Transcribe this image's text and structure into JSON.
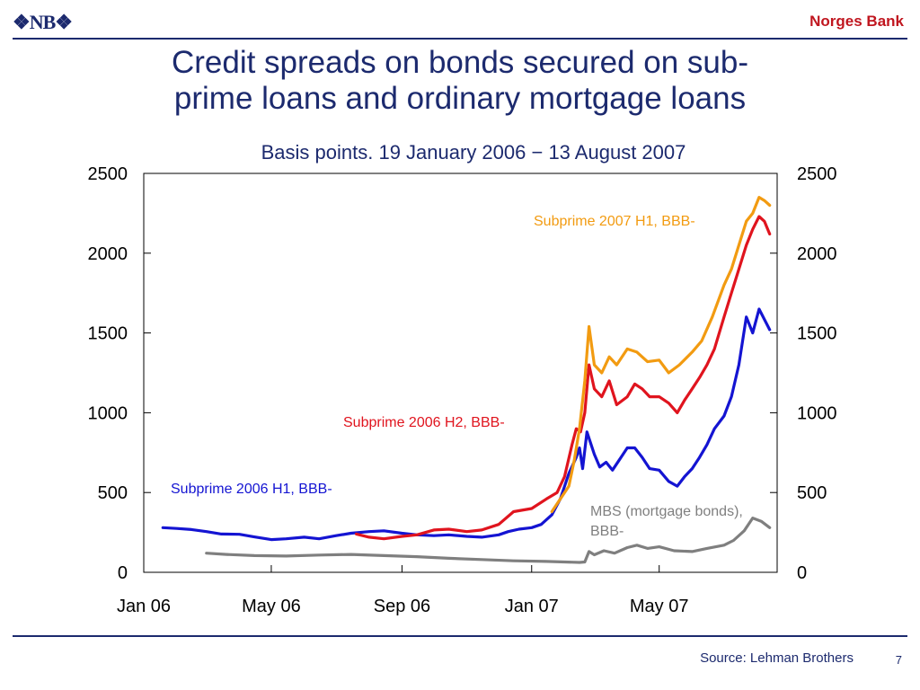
{
  "header": {
    "logo": "❖NB❖",
    "brand": "Norges Bank"
  },
  "title_lines": [
    "Credit spreads on bonds secured on sub-",
    "prime loans and ordinary mortgage loans"
  ],
  "footer": {
    "source": "Source: Lehman Brothers",
    "page": "7"
  },
  "colors": {
    "navy": "#1c2a6e",
    "accent": "#c0161f"
  },
  "chart_data": {
    "type": "line",
    "title": "Credit spreads on bonds secured on sub-prime loans and ordinary mortgage loans",
    "subtitle": "Basis points. 19 January 2006 − 13 August 2007",
    "xlabel": "",
    "ylabel": "",
    "x_ticks": [
      "Jan 06",
      "May 06",
      "Sep 06",
      "Jan 07",
      "May 07"
    ],
    "x_tick_dates": [
      "2006-01-01",
      "2006-05-01",
      "2006-09-01",
      "2007-01-01",
      "2007-05-01"
    ],
    "xlim": [
      "2006-01-01",
      "2007-08-20"
    ],
    "ylim": [
      0,
      2500
    ],
    "y_ticks_left": [
      0,
      500,
      1000,
      1500,
      2000,
      2500
    ],
    "y_ticks_right": [
      0,
      500,
      1000,
      1500,
      2000,
      2500
    ],
    "grid": false,
    "series": [
      {
        "name": "MBS (mortgage bonds), BBB-",
        "label_lines": [
          "MBS (mortgage bonds),",
          "BBB-"
        ],
        "color": "#7f7f7f",
        "points": [
          [
            "2006-03-01",
            120
          ],
          [
            "2006-03-20",
            112
          ],
          [
            "2006-04-15",
            105
          ],
          [
            "2006-05-15",
            102
          ],
          [
            "2006-06-15",
            108
          ],
          [
            "2006-07-15",
            112
          ],
          [
            "2006-08-15",
            105
          ],
          [
            "2006-09-15",
            98
          ],
          [
            "2006-10-15",
            88
          ],
          [
            "2006-11-15",
            80
          ],
          [
            "2006-12-15",
            72
          ],
          [
            "2007-01-15",
            68
          ],
          [
            "2007-02-01",
            65
          ],
          [
            "2007-02-15",
            62
          ],
          [
            "2007-02-20",
            65
          ],
          [
            "2007-02-24",
            130
          ],
          [
            "2007-03-01",
            110
          ],
          [
            "2007-03-10",
            135
          ],
          [
            "2007-03-20",
            120
          ],
          [
            "2007-04-01",
            155
          ],
          [
            "2007-04-10",
            170
          ],
          [
            "2007-04-20",
            150
          ],
          [
            "2007-05-01",
            160
          ],
          [
            "2007-05-15",
            135
          ],
          [
            "2007-06-01",
            130
          ],
          [
            "2007-06-15",
            150
          ],
          [
            "2007-07-01",
            170
          ],
          [
            "2007-07-10",
            200
          ],
          [
            "2007-07-20",
            260
          ],
          [
            "2007-07-28",
            340
          ],
          [
            "2007-08-05",
            320
          ],
          [
            "2007-08-13",
            280
          ]
        ]
      },
      {
        "name": "Subprime 2006 H1, BBB-",
        "label_lines": [
          "Subprime 2006 H1, BBB-"
        ],
        "color": "#1414d2",
        "points": [
          [
            "2006-01-19",
            280
          ],
          [
            "2006-02-01",
            275
          ],
          [
            "2006-02-15",
            268
          ],
          [
            "2006-03-01",
            255
          ],
          [
            "2006-03-15",
            240
          ],
          [
            "2006-04-01",
            238
          ],
          [
            "2006-04-15",
            222
          ],
          [
            "2006-05-01",
            205
          ],
          [
            "2006-05-15",
            210
          ],
          [
            "2006-06-01",
            220
          ],
          [
            "2006-06-15",
            210
          ],
          [
            "2006-07-01",
            230
          ],
          [
            "2006-07-15",
            245
          ],
          [
            "2006-08-01",
            255
          ],
          [
            "2006-08-15",
            260
          ],
          [
            "2006-09-01",
            245
          ],
          [
            "2006-09-15",
            235
          ],
          [
            "2006-10-01",
            230
          ],
          [
            "2006-10-15",
            235
          ],
          [
            "2006-11-01",
            225
          ],
          [
            "2006-11-15",
            220
          ],
          [
            "2006-12-01",
            235
          ],
          [
            "2006-12-10",
            255
          ],
          [
            "2006-12-20",
            270
          ],
          [
            "2007-01-01",
            280
          ],
          [
            "2007-01-10",
            300
          ],
          [
            "2007-01-20",
            360
          ],
          [
            "2007-01-28",
            460
          ],
          [
            "2007-02-05",
            620
          ],
          [
            "2007-02-12",
            720
          ],
          [
            "2007-02-15",
            780
          ],
          [
            "2007-02-18",
            650
          ],
          [
            "2007-02-22",
            880
          ],
          [
            "2007-03-01",
            740
          ],
          [
            "2007-03-06",
            660
          ],
          [
            "2007-03-12",
            690
          ],
          [
            "2007-03-18",
            640
          ],
          [
            "2007-03-24",
            700
          ],
          [
            "2007-04-01",
            780
          ],
          [
            "2007-04-08",
            780
          ],
          [
            "2007-04-15",
            720
          ],
          [
            "2007-04-22",
            650
          ],
          [
            "2007-05-01",
            640
          ],
          [
            "2007-05-10",
            570
          ],
          [
            "2007-05-18",
            540
          ],
          [
            "2007-05-25",
            600
          ],
          [
            "2007-06-01",
            650
          ],
          [
            "2007-06-08",
            720
          ],
          [
            "2007-06-15",
            800
          ],
          [
            "2007-06-22",
            900
          ],
          [
            "2007-07-01",
            980
          ],
          [
            "2007-07-08",
            1100
          ],
          [
            "2007-07-15",
            1300
          ],
          [
            "2007-07-22",
            1600
          ],
          [
            "2007-07-28",
            1500
          ],
          [
            "2007-08-03",
            1650
          ],
          [
            "2007-08-13",
            1520
          ]
        ]
      },
      {
        "name": "Subprime 2006 H2, BBB-",
        "label_lines": [
          "Subprime 2006 H2, BBB-"
        ],
        "color": "#e0141e",
        "points": [
          [
            "2006-07-20",
            240
          ],
          [
            "2006-08-01",
            220
          ],
          [
            "2006-08-15",
            210
          ],
          [
            "2006-09-01",
            225
          ],
          [
            "2006-09-15",
            235
          ],
          [
            "2006-10-01",
            265
          ],
          [
            "2006-10-15",
            270
          ],
          [
            "2006-11-01",
            255
          ],
          [
            "2006-11-15",
            265
          ],
          [
            "2006-12-01",
            300
          ],
          [
            "2006-12-15",
            380
          ],
          [
            "2007-01-01",
            400
          ],
          [
            "2007-01-15",
            460
          ],
          [
            "2007-01-25",
            500
          ],
          [
            "2007-02-01",
            600
          ],
          [
            "2007-02-08",
            800
          ],
          [
            "2007-02-12",
            900
          ],
          [
            "2007-02-16",
            880
          ],
          [
            "2007-02-20",
            1000
          ],
          [
            "2007-02-24",
            1300
          ],
          [
            "2007-03-01",
            1150
          ],
          [
            "2007-03-08",
            1100
          ],
          [
            "2007-03-15",
            1200
          ],
          [
            "2007-03-22",
            1050
          ],
          [
            "2007-04-01",
            1100
          ],
          [
            "2007-04-08",
            1180
          ],
          [
            "2007-04-15",
            1150
          ],
          [
            "2007-04-22",
            1100
          ],
          [
            "2007-05-01",
            1100
          ],
          [
            "2007-05-10",
            1060
          ],
          [
            "2007-05-18",
            1000
          ],
          [
            "2007-05-25",
            1080
          ],
          [
            "2007-06-01",
            1150
          ],
          [
            "2007-06-08",
            1220
          ],
          [
            "2007-06-15",
            1300
          ],
          [
            "2007-06-22",
            1400
          ],
          [
            "2007-07-01",
            1600
          ],
          [
            "2007-07-08",
            1750
          ],
          [
            "2007-07-15",
            1900
          ],
          [
            "2007-07-22",
            2050
          ],
          [
            "2007-07-28",
            2150
          ],
          [
            "2007-08-03",
            2230
          ],
          [
            "2007-08-08",
            2200
          ],
          [
            "2007-08-13",
            2120
          ]
        ]
      },
      {
        "name": "Subprime 2007 H1, BBB-",
        "label_lines": [
          "Subprime 2007 H1, BBB-"
        ],
        "color": "#f29b11",
        "points": [
          [
            "2007-01-20",
            380
          ],
          [
            "2007-01-28",
            460
          ],
          [
            "2007-02-05",
            540
          ],
          [
            "2007-02-10",
            700
          ],
          [
            "2007-02-15",
            900
          ],
          [
            "2007-02-20",
            1200
          ],
          [
            "2007-02-24",
            1540
          ],
          [
            "2007-03-01",
            1300
          ],
          [
            "2007-03-08",
            1250
          ],
          [
            "2007-03-15",
            1350
          ],
          [
            "2007-03-22",
            1300
          ],
          [
            "2007-04-01",
            1400
          ],
          [
            "2007-04-10",
            1380
          ],
          [
            "2007-04-20",
            1320
          ],
          [
            "2007-05-01",
            1330
          ],
          [
            "2007-05-10",
            1250
          ],
          [
            "2007-05-20",
            1300
          ],
          [
            "2007-06-01",
            1380
          ],
          [
            "2007-06-10",
            1450
          ],
          [
            "2007-06-20",
            1600
          ],
          [
            "2007-07-01",
            1800
          ],
          [
            "2007-07-08",
            1900
          ],
          [
            "2007-07-15",
            2050
          ],
          [
            "2007-07-22",
            2200
          ],
          [
            "2007-07-28",
            2250
          ],
          [
            "2007-08-03",
            2350
          ],
          [
            "2007-08-08",
            2330
          ],
          [
            "2007-08-13",
            2300
          ]
        ]
      }
    ]
  }
}
